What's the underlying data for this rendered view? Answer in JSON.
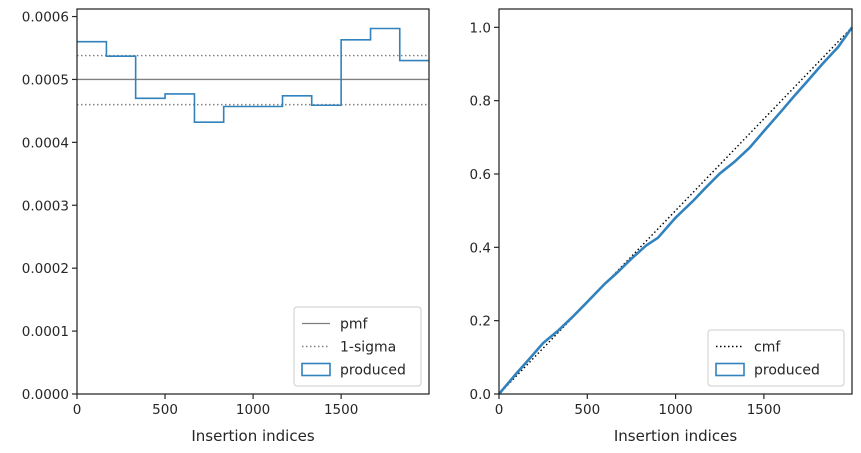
{
  "chart_data": [
    {
      "type": "line",
      "xlabel": "Insertion indices",
      "ylabel": "",
      "xlim": [
        0,
        1999
      ],
      "ylim": [
        0,
        0.000612
      ],
      "xticks": [
        0,
        500,
        1000,
        1500
      ],
      "xtick_labels": [
        "0",
        "500",
        "1000",
        "1500"
      ],
      "yticks": [
        0,
        0.0001,
        0.0002,
        0.0003,
        0.0004,
        0.0005,
        0.0006
      ],
      "ytick_labels": [
        "0.0000",
        "0.0001",
        "0.0002",
        "0.0003",
        "0.0004",
        "0.0005",
        "0.0006"
      ],
      "grid": false,
      "legend_position": "bottom-right",
      "colors": {
        "produced": "#3182bd",
        "pmf": "#808080",
        "sigma": "#808080",
        "axes": "#262626"
      },
      "series": [
        {
          "name": "pmf",
          "style": "solid",
          "x": [
            0,
            1999
          ],
          "y": [
            0.0005,
            0.0005
          ]
        },
        {
          "name": "1-sigma",
          "style": "dotted",
          "x": [
            0,
            1999
          ],
          "y": [
            0.000538,
            0.000538
          ],
          "y_lower": [
            0.00046,
            0.00046
          ]
        },
        {
          "name": "produced",
          "style": "step",
          "bin_edges": [
            0,
            167,
            333,
            500,
            667,
            833,
            1000,
            1167,
            1333,
            1500,
            1667,
            1833,
            1999
          ],
          "values": [
            0.00056,
            0.000537,
            0.00047,
            0.000477,
            0.000432,
            0.000457,
            0.000457,
            0.000474,
            0.000459,
            0.000563,
            0.000581,
            0.00053
          ]
        }
      ]
    },
    {
      "type": "line",
      "xlabel": "Insertion indices",
      "ylabel": "",
      "xlim": [
        0,
        1999
      ],
      "ylim": [
        0,
        1.05
      ],
      "xticks": [
        0,
        500,
        1000,
        1500
      ],
      "xtick_labels": [
        "0",
        "500",
        "1000",
        "1500"
      ],
      "yticks": [
        0,
        0.2,
        0.4,
        0.6,
        0.8,
        1.0
      ],
      "ytick_labels": [
        "0.0",
        "0.2",
        "0.4",
        "0.6",
        "0.8",
        "1.0"
      ],
      "grid": false,
      "legend_position": "bottom-right",
      "colors": {
        "produced": "#3182bd",
        "cmf": "#000000",
        "axes": "#262626"
      },
      "series": [
        {
          "name": "cmf",
          "style": "dotted",
          "x": [
            0,
            1999
          ],
          "y": [
            0,
            1.0
          ]
        },
        {
          "name": "produced",
          "style": "step",
          "x": [
            0,
            100,
            167,
            250,
            333,
            420,
            500,
            600,
            667,
            750,
            833,
            900,
            1000,
            1100,
            1167,
            1250,
            1333,
            1420,
            1500,
            1600,
            1667,
            1750,
            1833,
            1920,
            1999
          ],
          "y": [
            0,
            0.057,
            0.093,
            0.139,
            0.172,
            0.212,
            0.251,
            0.301,
            0.33,
            0.369,
            0.405,
            0.426,
            0.481,
            0.527,
            0.561,
            0.601,
            0.633,
            0.672,
            0.717,
            0.772,
            0.81,
            0.855,
            0.901,
            0.946,
            1.0
          ]
        }
      ]
    }
  ]
}
